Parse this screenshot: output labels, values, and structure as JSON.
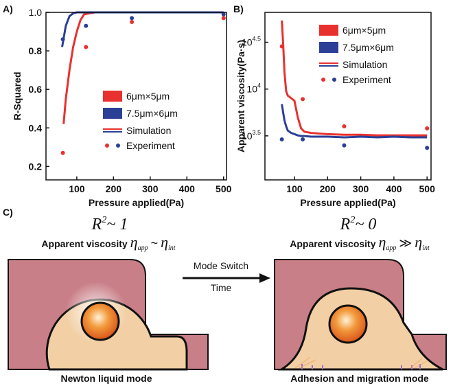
{
  "chart_data": [
    {
      "type": "line",
      "panel_label": "A)",
      "x_label": "Pressure applied(Pa)",
      "y_label": "R-Squared",
      "xlim": [
        16,
        508
      ],
      "ylim": [
        0.13,
        1.0
      ],
      "xticks": [
        100,
        200,
        300,
        400,
        500
      ],
      "yticks": [
        0.2,
        0.4,
        0.6,
        0.8,
        {
          "value": 1,
          "label": "1.0"
        }
      ],
      "log_y": false,
      "series": [
        {
          "name": "6μm×5μm",
          "color": "#e8312f",
          "simulation": {
            "x": [
              64,
              70,
              80,
              90,
              100,
              110,
              120,
              150,
              200,
              250,
              300,
              350,
              400,
              450,
              500
            ],
            "values": [
              0.42,
              0.55,
              0.7,
              0.82,
              0.9,
              0.96,
              0.99,
              1.0,
              1.0,
              1.0,
              1.0,
              1.0,
              1.0,
              1.0,
              1.0
            ]
          },
          "experiment": {
            "x": [
              62,
              125,
              250,
              500
            ],
            "values": [
              0.27,
              0.82,
              0.95,
              0.97
            ]
          }
        },
        {
          "name": "7.5μm×6μm",
          "color": "#2b3f96",
          "simulation": {
            "x": [
              60,
              70,
              80,
              90,
              100,
              110,
              120,
              150,
              200,
              250,
              300,
              350,
              400,
              450,
              500
            ],
            "values": [
              0.82,
              0.93,
              0.98,
              0.995,
              1.0,
              1.0,
              1.0,
              1.0,
              1.0,
              1.0,
              1.0,
              1.0,
              1.0,
              1.0,
              1.0
            ]
          },
          "experiment": {
            "x": [
              62,
              125,
              250,
              500
            ],
            "values": [
              0.86,
              0.93,
              0.97,
              0.99
            ]
          }
        }
      ],
      "legend_entries": [
        "Simulation",
        "Experiment"
      ]
    },
    {
      "type": "line",
      "panel_label": "B)",
      "x_label": "Pressure applied(Pa)",
      "y_label": "Apparent viscosity(Pa·s)",
      "xlim": [
        11,
        512
      ],
      "ylim": [
        1070,
        66000
      ],
      "xticks": [
        100,
        200,
        300,
        400,
        500
      ],
      "yticks": [
        {
          "value": 3162.28,
          "label": "10",
          "exponent": "3.5"
        },
        {
          "value": 10000,
          "label": "10",
          "exponent": "4"
        },
        {
          "value": 31622.8,
          "label": "10",
          "exponent": "4.5"
        }
      ],
      "log_y": true,
      "series": [
        {
          "name": "6μm×5μm",
          "color": "#e8312f",
          "simulation": {
            "x": [
              62,
              66,
              70,
              75,
              80,
              90,
              100,
              110,
              120,
              130,
              150,
              200,
              250,
              300,
              350,
              400,
              450,
              500
            ],
            "values": [
              54000,
              30000,
              15000,
              9500,
              8500,
              8000,
              7500,
              5000,
              3800,
              3500,
              3400,
              3300,
              3250,
              3250,
              3200,
              3200,
              3200,
              3200
            ]
          },
          "experiment": {
            "x": [
              62,
              125,
              250,
              500
            ],
            "values": [
              28600,
              7800,
              4000,
              3800
            ]
          }
        },
        {
          "name": "7.5μm×6μm",
          "color": "#2b3f96",
          "simulation": {
            "x": [
              62,
              66,
              70,
              75,
              80,
              90,
              100,
              110,
              120,
              130,
              150,
              200,
              250,
              300,
              350,
              400,
              450,
              500
            ],
            "values": [
              6900,
              5600,
              4600,
              4000,
              3600,
              3400,
              3300,
              3200,
              3150,
              3150,
              3100,
              3100,
              3050,
              3100,
              3050,
              3100,
              3050,
              3050
            ]
          },
          "experiment": {
            "x": [
              62,
              125,
              250,
              500
            ],
            "values": [
              2900,
              2900,
              2500,
              2350
            ]
          }
        }
      ],
      "legend_entries": [
        "Simulation",
        "Experiment"
      ]
    }
  ],
  "diagram": {
    "panel_label": "C)",
    "arrow_top": "Mode Switch",
    "arrow_bottom": "Time",
    "left": {
      "r": "R",
      "r_exp": "2",
      "r_rest": "~ 1",
      "viscosity": "Apparent viscosity",
      "eta1": "η",
      "sub1": "app",
      "relation": "~",
      "eta2": "η",
      "sub2": "int",
      "mode": "Newton liquid mode"
    },
    "right": {
      "r": "R",
      "r_exp": "2",
      "r_rest": "~ 0",
      "viscosity": "Apparent viscosity",
      "eta1": "η",
      "sub1": "app",
      "relation": "≫",
      "eta2": "η",
      "sub2": "int",
      "mode": "Adhesion and migration mode"
    }
  }
}
